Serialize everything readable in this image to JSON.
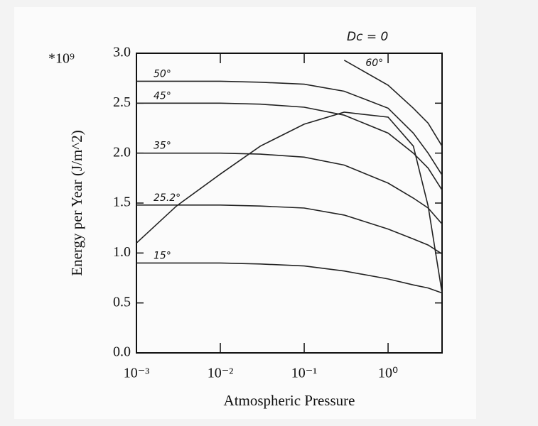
{
  "chart_data": {
    "type": "line",
    "multiplier": "*10⁹",
    "annotation": "Dc = 0",
    "x_label": "Atmospheric Pressure",
    "y_label": "Energy per Year (J/m^2)",
    "log_x": true,
    "x": [
      0.001,
      0.003,
      0.01,
      0.03,
      0.1,
      0.3,
      1,
      2,
      3,
      4.4
    ],
    "xlim": [
      0.001,
      4.4
    ],
    "xticks": [
      {
        "value": 0.001,
        "label": "10⁻³"
      },
      {
        "value": 0.01,
        "label": "10⁻²"
      },
      {
        "value": 0.1,
        "label": "10⁻¹"
      },
      {
        "value": 1,
        "label": "10⁰"
      }
    ],
    "ylim": [
      0,
      3
    ],
    "yticks": [
      {
        "value": 0,
        "label": "0.0"
      },
      0.5,
      {
        "value": 1,
        "label": "1.0"
      },
      1.5,
      {
        "value": 2,
        "label": "2.0"
      },
      2.5,
      {
        "value": 3,
        "label": "3.0"
      }
    ],
    "series": [
      {
        "name": "50°",
        "color": "#222222",
        "values": [
          2.72,
          2.72,
          2.72,
          2.71,
          2.69,
          2.62,
          2.45,
          2.2,
          2.0,
          1.78
        ]
      },
      {
        "name": "45°",
        "color": "#222222",
        "values": [
          2.5,
          2.5,
          2.5,
          2.49,
          2.46,
          2.38,
          2.2,
          2.0,
          1.85,
          1.63
        ]
      },
      {
        "name": "35°",
        "color": "#222222",
        "values": [
          2.0,
          2.0,
          2.0,
          1.99,
          1.96,
          1.88,
          1.7,
          1.55,
          1.45,
          1.29
        ]
      },
      {
        "name": "25.2°",
        "color": "#222222",
        "values": [
          1.48,
          1.48,
          1.48,
          1.47,
          1.45,
          1.38,
          1.24,
          1.14,
          1.08,
          0.99
        ]
      },
      {
        "name": "15°",
        "color": "#222222",
        "values": [
          0.9,
          0.9,
          0.9,
          0.89,
          0.87,
          0.82,
          0.74,
          0.68,
          0.65,
          0.6
        ]
      },
      {
        "name": "60°",
        "color": "#222222",
        "values": [
          null,
          null,
          null,
          null,
          null,
          2.93,
          2.68,
          2.45,
          2.3,
          2.07
        ]
      },
      {
        "color": "#222222",
        "values": [
          1.1,
          1.47,
          1.79,
          2.07,
          2.29,
          2.41,
          2.36,
          2.07,
          1.47,
          0.6
        ]
      }
    ]
  }
}
